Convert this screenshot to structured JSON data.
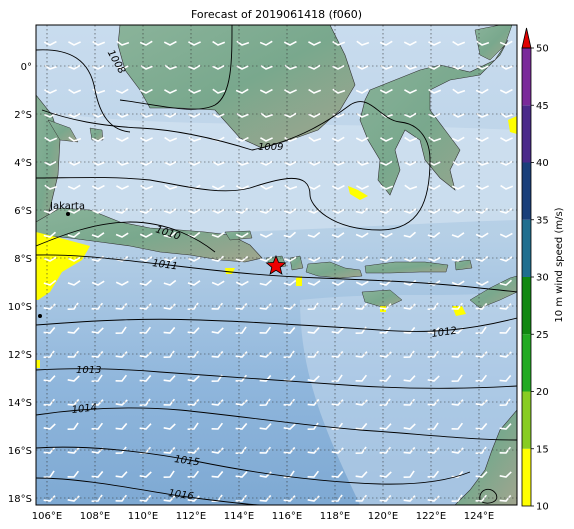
{
  "title": "Forecast of 2019061418 (f060)",
  "lon_ticks": [
    "106°E",
    "108°E",
    "110°E",
    "112°E",
    "114°E",
    "116°E",
    "118°E",
    "120°E",
    "122°E",
    "124°E"
  ],
  "lat_ticks": [
    "0°",
    "2°S",
    "4°S",
    "6°S",
    "8°S",
    "10°S",
    "12°S",
    "14°S",
    "16°S",
    "18°S"
  ],
  "isobars": [
    {
      "label": "1008"
    },
    {
      "label": "1009"
    },
    {
      "label": "1010"
    },
    {
      "label": "1011"
    },
    {
      "label": "1012"
    },
    {
      "label": "1013"
    },
    {
      "label": "1014"
    },
    {
      "label": "1015"
    },
    {
      "label": "1016"
    }
  ],
  "cities": [
    {
      "name": "Jakarta"
    }
  ],
  "colorbar": {
    "label": "10 m wind speed (m/s)",
    "ticks": [
      "10",
      "15",
      "20",
      "25",
      "30",
      "35",
      "40",
      "45",
      "50"
    ],
    "colors": [
      "#ffff00",
      "#88cc22",
      "#22aa22",
      "#118811",
      "#1f6f8f",
      "#1a3f7a",
      "#4a2a8a",
      "#7a2a9a",
      "#9a3aaa"
    ],
    "extend_color": "#e00000"
  },
  "marker": {
    "type": "star",
    "color": "#ee0000"
  }
}
